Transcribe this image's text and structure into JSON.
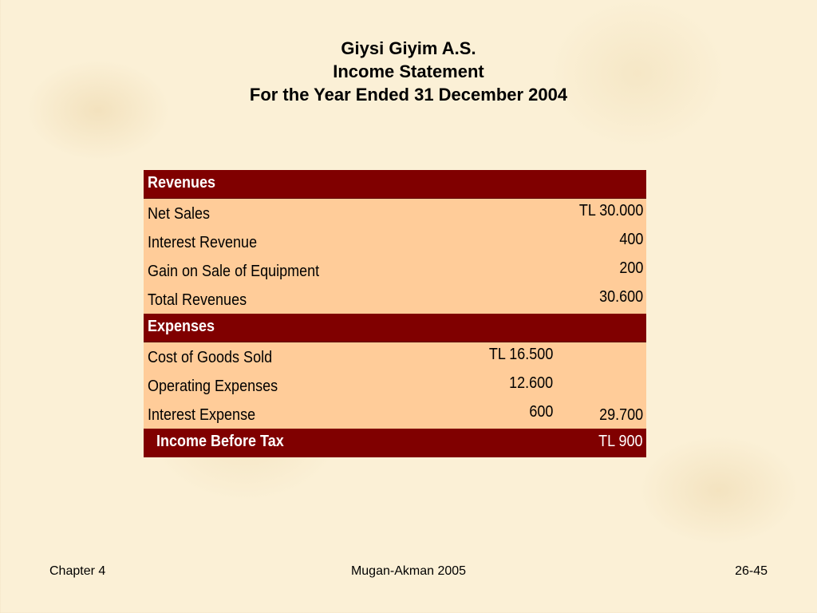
{
  "header": {
    "company": "Giysi Giyim A.S.",
    "statement": "Income Statement",
    "period": "For the Year Ended 31 December 2004"
  },
  "revenues": {
    "heading": "Revenues",
    "items": [
      {
        "label": "Net Sales",
        "amount": "TL 30.000"
      },
      {
        "label": "Interest Revenue",
        "amount": "400"
      },
      {
        "label": "Gain on Sale of Equipment",
        "amount": "200"
      }
    ],
    "total": {
      "label": "Total Revenues",
      "amount": "30.600"
    }
  },
  "expenses": {
    "heading": "Expenses",
    "items": [
      {
        "label": "Cost of Goods Sold",
        "amount": "TL 16.500"
      },
      {
        "label": "Operating Expenses",
        "amount": "12.600"
      },
      {
        "label": "Interest Expense",
        "amount": "600"
      }
    ],
    "total": "29.700"
  },
  "income_before_tax": {
    "label": "Income Before Tax",
    "amount": "TL 900"
  },
  "footer": {
    "chapter": "Chapter 4",
    "author": "Mugan-Akman 2005",
    "page": "26-45"
  },
  "colors": {
    "band": "#800000",
    "row": "#ffcc99",
    "background": "#fbf0d6"
  }
}
